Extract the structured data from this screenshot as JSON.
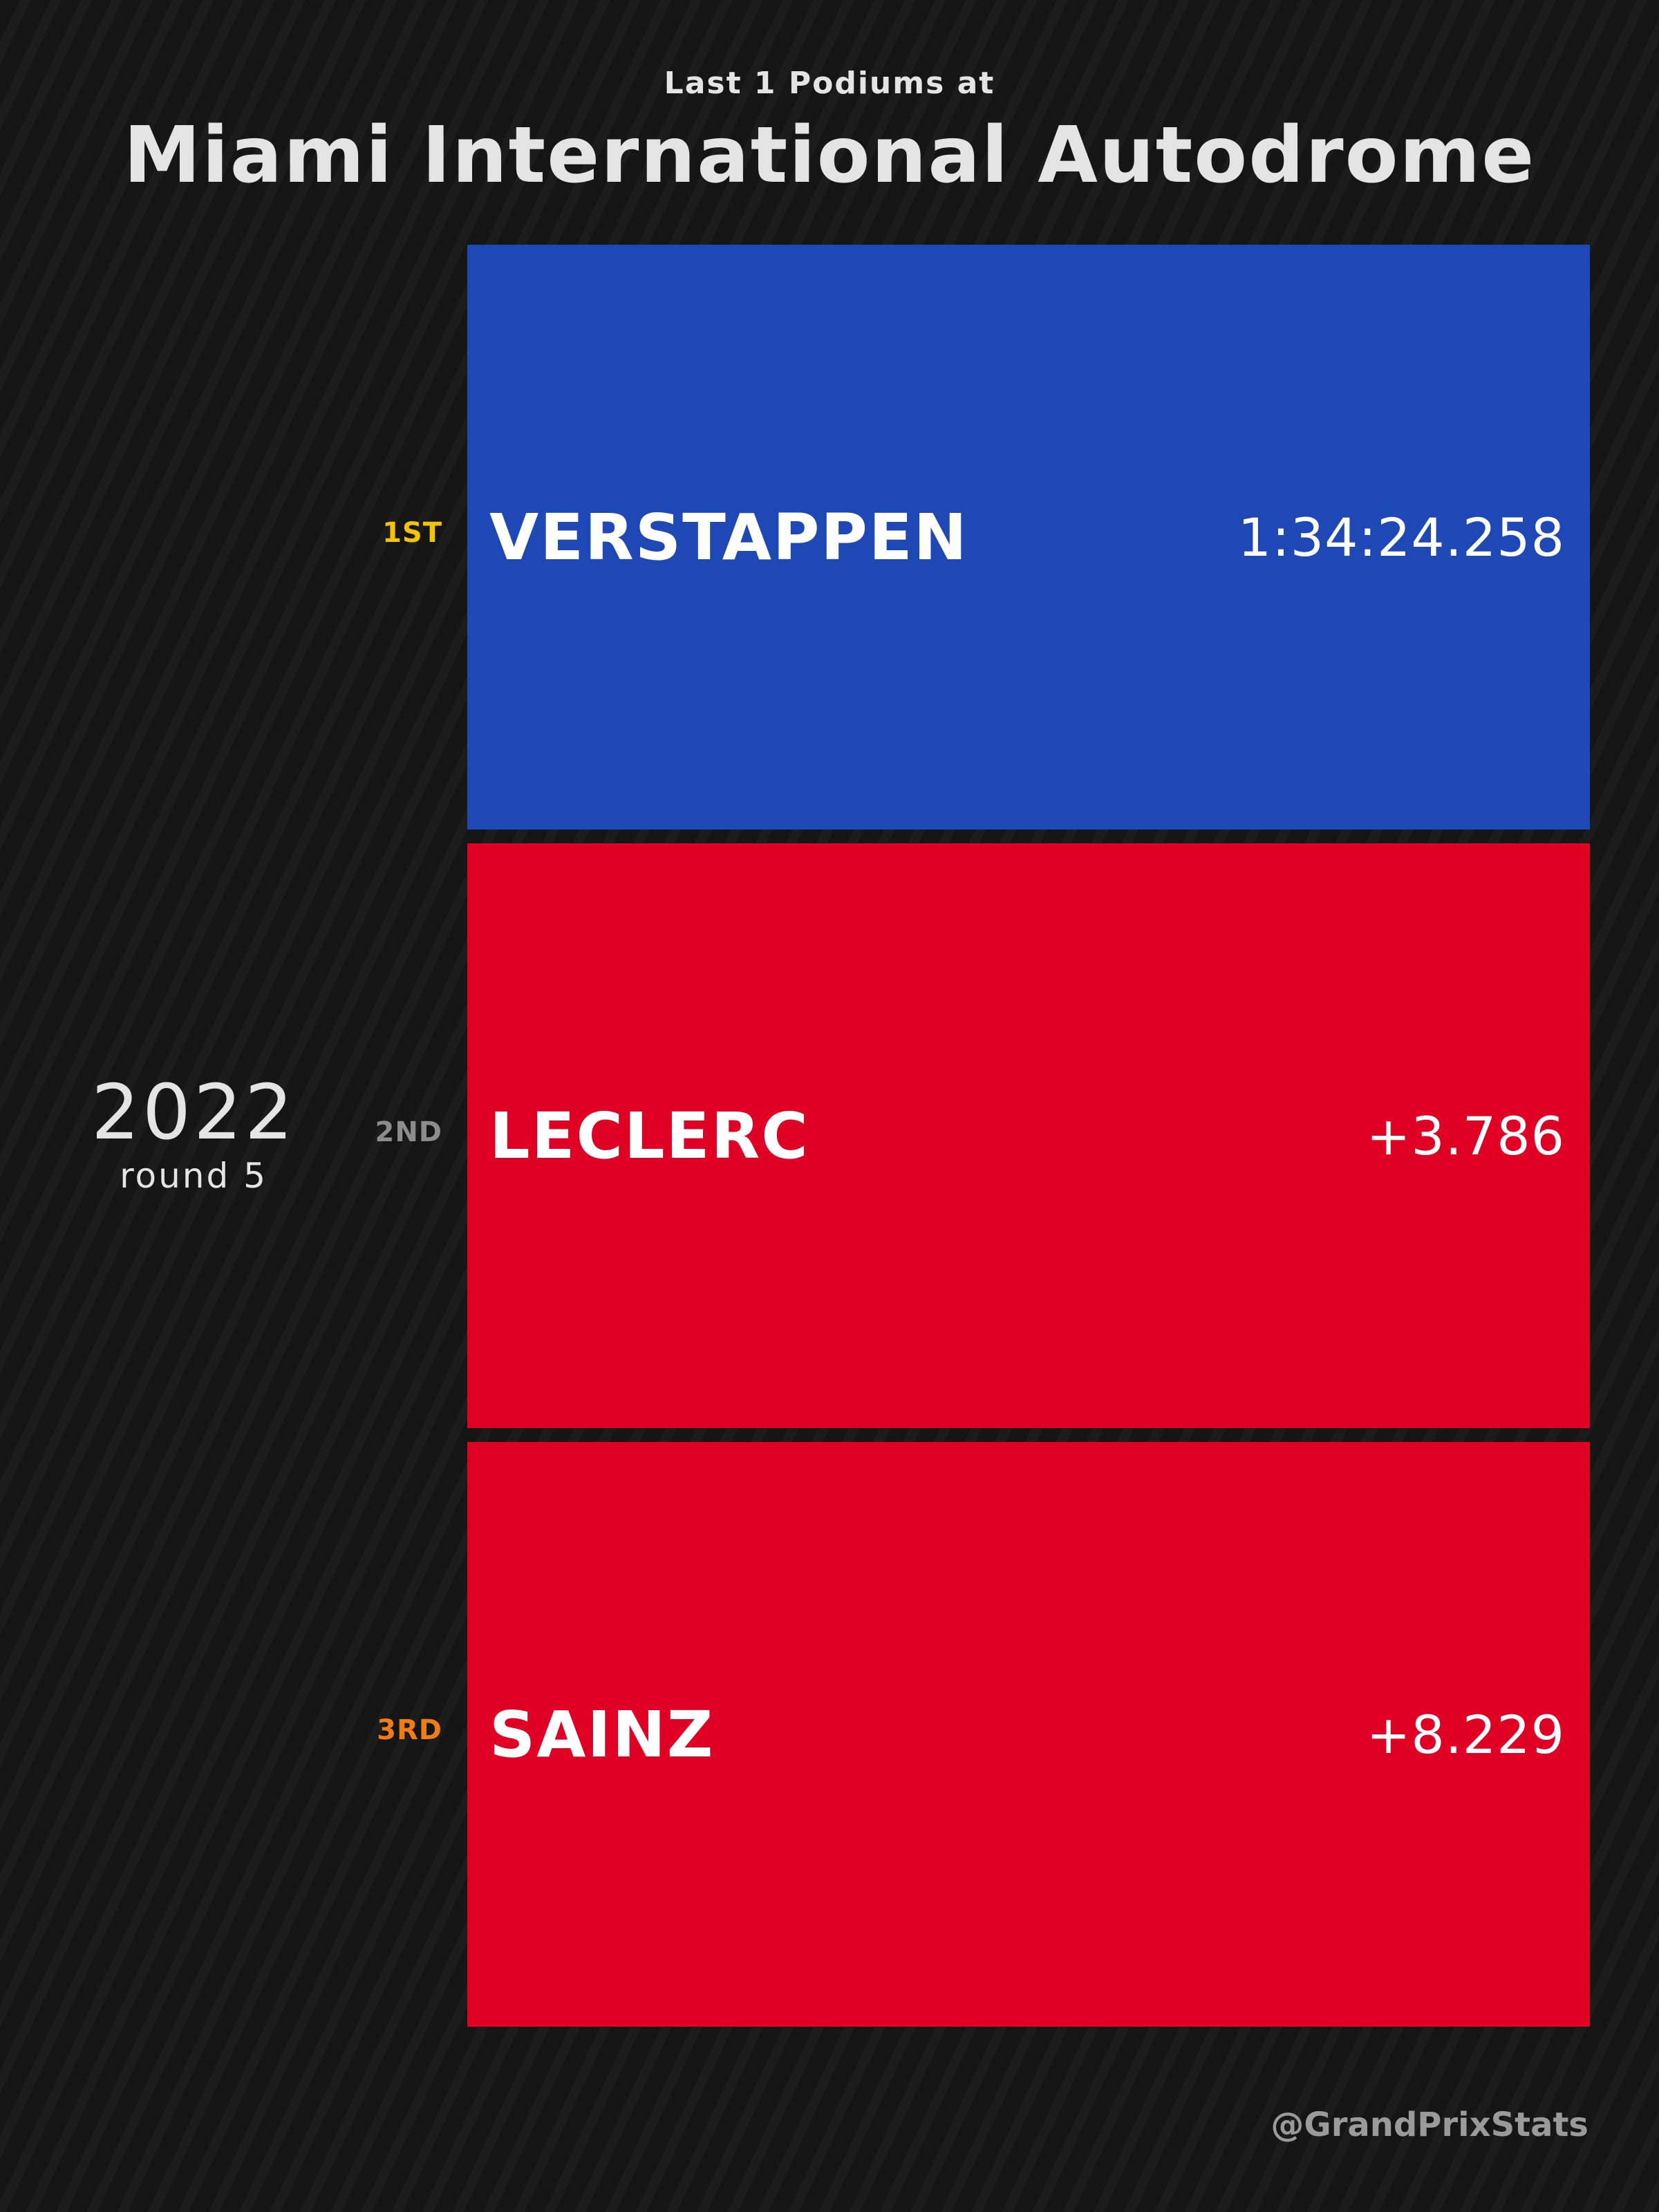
{
  "header": {
    "subtitle": "Last 1 Podiums at",
    "title": "Miami International Autodrome"
  },
  "race": {
    "year": "2022",
    "round": "round 5"
  },
  "podium": [
    {
      "position": "1ST",
      "driver": "VERSTAPPEN",
      "time": "1:34:24.258",
      "box_color": "#1e48b6",
      "position_color": "#f5c400"
    },
    {
      "position": "2ND",
      "driver": "LECLERC",
      "time": "+3.786",
      "box_color": "#e00024",
      "position_color": "#8c8c8c"
    },
    {
      "position": "3RD",
      "driver": "SAINZ",
      "time": "+8.229",
      "box_color": "#e00024",
      "position_color": "#f07d12"
    }
  ],
  "credit": "@GrandPrixStats",
  "colors": {
    "background": "#151515",
    "title_text": "#e4e4e4",
    "driver_text": "#ffffff",
    "credit_text": "#9a9a9a"
  }
}
